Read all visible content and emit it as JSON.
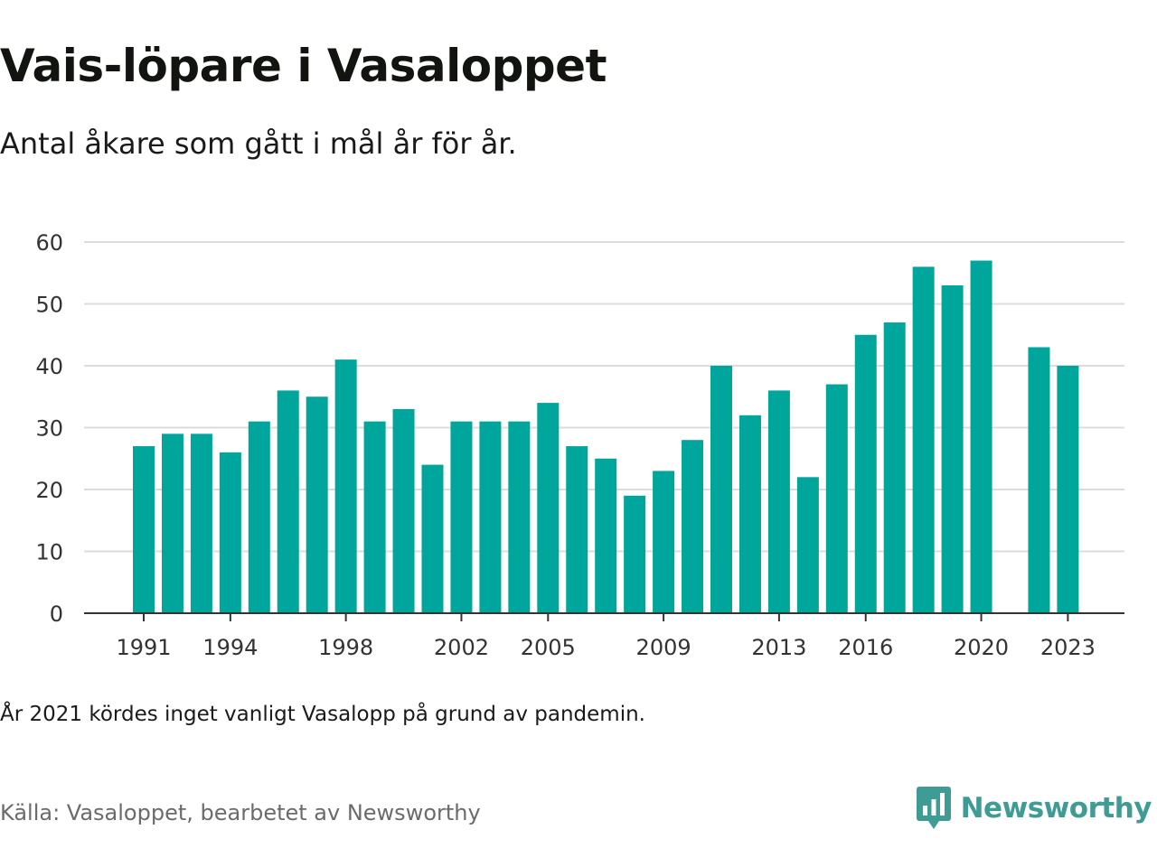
{
  "header": {
    "title": "Vais-löpare i Vasaloppet",
    "subtitle": "Antal åkare som gått i mål år för år."
  },
  "footer": {
    "note": "År 2021 kördes inget vanligt Vasalopp på grund av pandemin.",
    "source": "Källa: Vasaloppet, bearbetet av Newsworthy",
    "brand": "Newsworthy",
    "brand_icon": "newsworthy-logo-icon",
    "brand_color": "#3e9c94"
  },
  "chart_data": {
    "type": "bar",
    "title": "Vais-löpare i Vasaloppet",
    "subtitle": "Antal åkare som gått i mål år för år.",
    "xlabel": "",
    "ylabel": "",
    "ylim": [
      0,
      60
    ],
    "yticks": [
      0,
      10,
      20,
      30,
      40,
      50,
      60
    ],
    "xticks": [
      1991,
      1994,
      1998,
      2002,
      2005,
      2009,
      2013,
      2016,
      2020,
      2023
    ],
    "grid": true,
    "legend": "none",
    "bar_color": "#00a59b",
    "grid_color": "#dcdcdc",
    "axis_color": "#333333",
    "categories": [
      1991,
      1992,
      1993,
      1994,
      1995,
      1996,
      1997,
      1998,
      1999,
      2000,
      2001,
      2002,
      2003,
      2004,
      2005,
      2006,
      2007,
      2008,
      2009,
      2010,
      2011,
      2012,
      2013,
      2014,
      2015,
      2016,
      2017,
      2018,
      2019,
      2020,
      2021,
      2022,
      2023
    ],
    "values": [
      27,
      29,
      29,
      26,
      31,
      36,
      35,
      41,
      31,
      33,
      24,
      31,
      31,
      31,
      34,
      27,
      25,
      19,
      23,
      28,
      40,
      32,
      36,
      22,
      37,
      45,
      47,
      56,
      53,
      57,
      null,
      43,
      40
    ]
  }
}
